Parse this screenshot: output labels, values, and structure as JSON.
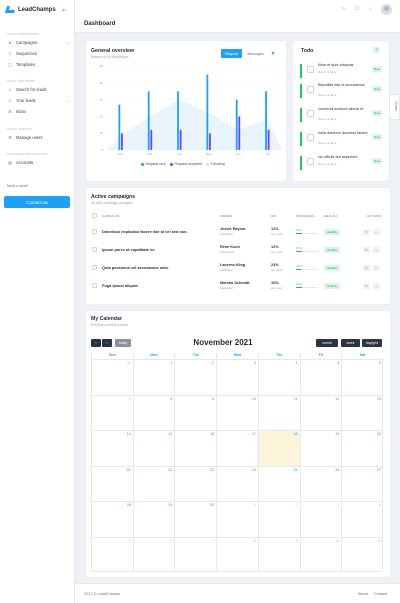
{
  "app": {
    "name": "LeadChamps"
  },
  "sidebar": {
    "sections": [
      "Your campaigns",
      "Your network",
      "Your agents",
      "Discover resources"
    ],
    "items": [
      {
        "label": "Campaigns",
        "icon": "send-icon"
      },
      {
        "label": "Sequences",
        "icon": "sequence-icon"
      },
      {
        "label": "Templates",
        "icon": "template-icon"
      },
      {
        "label": "Search for leads",
        "icon": "search-icon"
      },
      {
        "label": "Your leads",
        "icon": "users-icon"
      },
      {
        "label": "Inbox",
        "icon": "inbox-icon"
      },
      {
        "label": "Manage users",
        "icon": "user-cog-icon"
      },
      {
        "label": "Accounts",
        "icon": "accounts-icon"
      }
    ],
    "help_label": "Need a hand?",
    "contact_label": "Contact us"
  },
  "header": {
    "title": "Dashboard"
  },
  "overview": {
    "title": "General overview",
    "subtitle": "Based on 50 campaigns",
    "seg_active": "Request",
    "seg_other": "Messages",
    "legend": [
      "Request sent",
      "Request accepted",
      "Following"
    ]
  },
  "chart_data": {
    "type": "bar",
    "categories": [
      "Feb",
      "Mar",
      "Apr",
      "May",
      "Jun",
      "Jul"
    ],
    "series": [
      {
        "name": "Request sent",
        "values": [
          27,
          35,
          35,
          45,
          30,
          35
        ]
      },
      {
        "name": "Request accepted",
        "values": [
          10,
          12,
          12,
          10,
          20,
          12
        ]
      },
      {
        "name": "Following",
        "values": [
          8,
          20,
          30,
          22,
          12,
          18
        ]
      }
    ],
    "ylim": [
      0,
      50
    ],
    "yticks": [
      0,
      10,
      20,
      30,
      40,
      50
    ],
    "colors": [
      "#1ea1f2",
      "#6f42ff",
      "#cfe6fb"
    ]
  },
  "todo": {
    "title": "Todo",
    "count": "7",
    "items": [
      {
        "text": "Illum et quis voluptas",
        "date": "Due in 2 days",
        "badge": "Now"
      },
      {
        "text": "Blanditiis iste ut accusamus",
        "date": "Due in 2 days",
        "badge": "Now"
      },
      {
        "text": "commodi incidunt labore et",
        "date": "Due in 2 days",
        "badge": "Now"
      },
      {
        "text": "nulla dolorem ducimus facere",
        "date": "Due in 2 days",
        "badge": "Now"
      },
      {
        "text": "vel officiis aut asperiore",
        "date": "Due in 2 days",
        "badge": "Now"
      }
    ],
    "side_tab": "Tickets"
  },
  "campaigns": {
    "title": "Active campaigns",
    "subtitle": "All with campaign pedigree",
    "columns": [
      "Campaign",
      "Owner",
      "Kpi",
      "Progress",
      "Health",
      "Actions"
    ],
    "rows": [
      {
        "name": "Doloribus explicabo facere iste id vel sed non.",
        "owner": "Jessie Raynor",
        "role": "Facilitator",
        "kpi": "12%",
        "kpi_sub": "per view",
        "progress": 0.28,
        "progress_label": "28%",
        "health": "Healthy"
      },
      {
        "name": "Ipsum porro ut cupiditate ex.",
        "owner": "Rene Koch",
        "role": "Supervisor",
        "kpi": "12%",
        "kpi_sub": "per view",
        "progress": 0.26,
        "progress_label": "26%",
        "health": "Healthy"
      },
      {
        "name": "Quia possimus vel accusamus odio.",
        "owner": "Laverna Kling",
        "role": "Facilitator",
        "kpi": "23%",
        "kpi_sub": "per view",
        "progress": 0.23,
        "progress_label": "23%",
        "health": "Healthy"
      },
      {
        "name": "Fuga ipsum aliquid.",
        "owner": "Marsha Schmidt",
        "role": "Facilitator",
        "kpi": "10%",
        "kpi_sub": "per view",
        "progress": 0.28,
        "progress_label": "28%",
        "health": "Healthy"
      }
    ]
  },
  "calendar": {
    "title": "My Calendar",
    "subtitle": "Preview monthly events",
    "month": "November 2021",
    "today_label": "today",
    "views": [
      "month",
      "week",
      "day/grid"
    ],
    "days": [
      "Sun",
      "Mon",
      "Tue",
      "Wed",
      "Thu",
      "Fri",
      "Sat"
    ],
    "weeks": [
      [
        "31",
        "1",
        "2",
        "3",
        "4",
        "5",
        "6"
      ],
      [
        "7",
        "8",
        "9",
        "10",
        "11",
        "12",
        "13"
      ],
      [
        "14",
        "15",
        "16",
        "17",
        "18",
        "19",
        "20"
      ],
      [
        "21",
        "22",
        "23",
        "24",
        "25",
        "26",
        "27"
      ],
      [
        "28",
        "29",
        "30",
        "1",
        "2",
        "3",
        "4"
      ],
      [
        "5",
        "6",
        "7",
        "8",
        "9",
        "10",
        "11"
      ]
    ]
  },
  "footer": {
    "copyright": "2021 © LeadChamps",
    "links": [
      "About",
      "Contact"
    ]
  }
}
